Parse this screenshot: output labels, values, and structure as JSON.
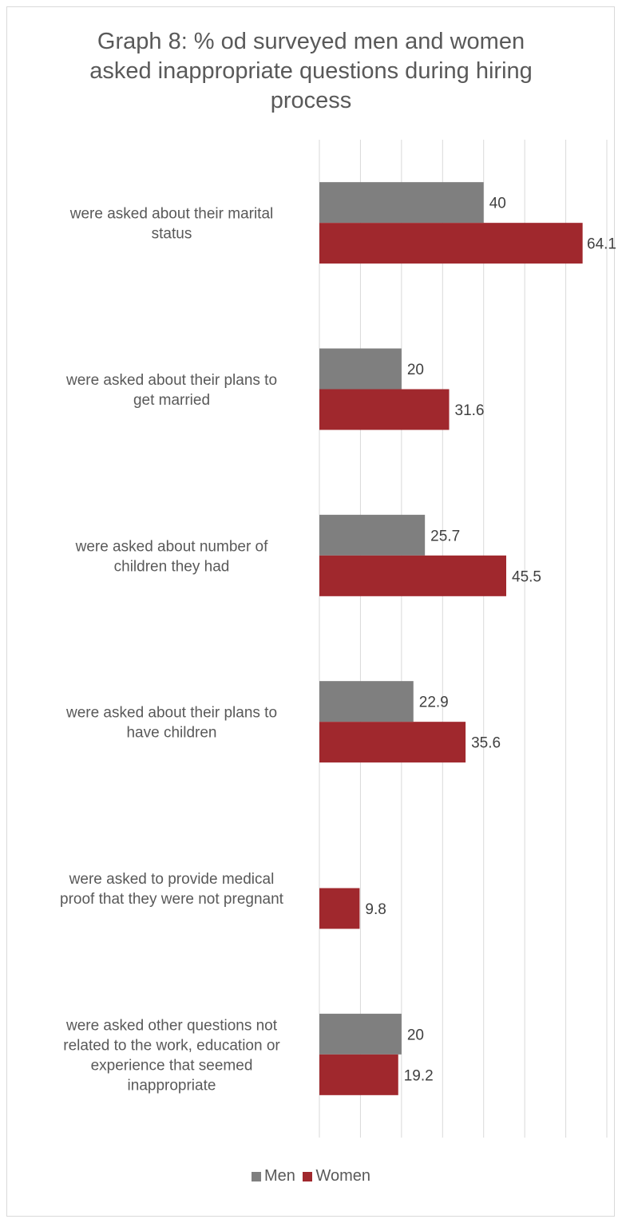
{
  "chart_data": {
    "type": "bar",
    "orientation": "horizontal",
    "title": "Graph 8: % od surveyed men and women asked inappropriate questions during hiring process",
    "categories": [
      "were asked about their marital status",
      "were asked about their plans to get married",
      "were asked about number of children they had",
      "were asked about their plans to have children",
      "were asked to provide medical proof that they were not pregnant",
      "were asked other questions not related to the work, education or experience that seemed inappropriate"
    ],
    "category_lines": [
      [
        "were asked about their marital",
        "status"
      ],
      [
        "were asked about their plans to",
        "get married"
      ],
      [
        "were asked about number of",
        "children they had"
      ],
      [
        "were asked about their plans to",
        "have children"
      ],
      [
        "were asked to provide medical",
        "proof that they were not pregnant"
      ],
      [
        "were asked other questions not",
        "related to the work, education or",
        "experience that seemed",
        "inappropriate"
      ]
    ],
    "series": [
      {
        "name": "Men",
        "color": "#7f7f7f",
        "values": [
          40,
          20,
          25.7,
          22.9,
          null,
          20
        ],
        "labels": [
          "40",
          "20",
          "25.7",
          "22.9",
          "",
          "20"
        ]
      },
      {
        "name": "Women",
        "color": "#a0282d",
        "values": [
          64.1,
          31.6,
          45.5,
          35.6,
          9.8,
          19.2
        ],
        "labels": [
          "64.1",
          "31.6",
          "45.5",
          "35.6",
          "9.8",
          "19.2"
        ]
      }
    ],
    "xlim": [
      0,
      70
    ],
    "grid": true,
    "legend_position": "bottom"
  }
}
